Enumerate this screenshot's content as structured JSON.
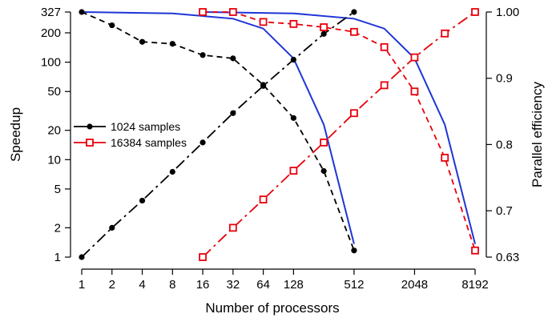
{
  "chart_data": {
    "type": "line",
    "title": "",
    "xlabel": "Number of processors",
    "ylabel_left": "Speedup",
    "ylabel_right": "Parallel efficiency",
    "x_scale": "log2",
    "y_left_scale": "log",
    "y_right_scale": "linear",
    "xlim": [
      1,
      8192
    ],
    "ylim_left": [
      1,
      327
    ],
    "ylim_right": [
      0.63,
      1.0
    ],
    "grid": false,
    "legend_position": "center-left",
    "x_ticks": [
      "1",
      "2",
      "4",
      "8",
      "16",
      "32",
      "64",
      "128",
      "512",
      "2048",
      "8192"
    ],
    "x_tick_values": [
      1,
      2,
      4,
      8,
      16,
      32,
      64,
      128,
      512,
      2048,
      8192
    ],
    "y_left_ticks": [
      "1",
      "2",
      "5",
      "10",
      "20",
      "50",
      "100",
      "200",
      "327"
    ],
    "y_left_tick_values": [
      1,
      2,
      5,
      10,
      20,
      50,
      100,
      200,
      327
    ],
    "y_right_ticks": [
      "0.63",
      "0.7",
      "0.8",
      "0.9",
      "1.00"
    ],
    "y_right_tick_values": [
      0.63,
      0.7,
      0.8,
      0.9,
      1.0
    ],
    "legend": [
      {
        "label": "1024 samples",
        "color": "#000000",
        "marker": "filled-circle"
      },
      {
        "label": "16384 samples",
        "color": "#e8000b",
        "marker": "open-square"
      }
    ],
    "series": [
      {
        "name": "1024 samples",
        "role": "speedup",
        "axis": "left",
        "color": "#000000",
        "x": [
          1,
          2,
          4,
          8,
          16,
          32,
          64,
          128,
          256,
          512
        ],
        "y": [
          1,
          2,
          3.8,
          7.5,
          15,
          30,
          57,
          106,
          195,
          327
        ]
      },
      {
        "name": "1024 samples",
        "role": "efficiency",
        "axis": "right",
        "color": "#000000",
        "x": [
          1,
          2,
          4,
          8,
          16,
          32,
          64,
          128,
          256,
          512
        ],
        "y": [
          1.0,
          0.98,
          0.955,
          0.952,
          0.935,
          0.93,
          0.89,
          0.84,
          0.76,
          0.64
        ]
      },
      {
        "name": "16384 samples",
        "role": "speedup",
        "axis": "left",
        "color": "#e8000b",
        "x": [
          16,
          32,
          64,
          128,
          256,
          512,
          1024,
          2048,
          4096,
          8192
        ],
        "y": [
          1,
          2,
          3.9,
          7.7,
          15,
          30,
          58,
          112,
          197,
          327
        ]
      },
      {
        "name": "16384 samples",
        "role": "efficiency",
        "axis": "right",
        "color": "#e8000b",
        "x": [
          16,
          32,
          64,
          128,
          256,
          512,
          1024,
          2048,
          4096,
          8192
        ],
        "y": [
          1.0,
          1.0,
          0.985,
          0.982,
          0.977,
          0.97,
          0.947,
          0.88,
          0.78,
          0.64
        ]
      }
    ],
    "fit_curves": [
      {
        "role": "efficiency fit",
        "axis": "right",
        "color": "#1f35d6",
        "x": [
          1,
          8,
          32,
          64,
          128,
          256,
          512
        ],
        "y": [
          1.0,
          0.998,
          0.99,
          0.975,
          0.93,
          0.83,
          0.65
        ]
      },
      {
        "role": "efficiency fit",
        "axis": "right",
        "color": "#1f35d6",
        "x": [
          16,
          128,
          512,
          1024,
          2048,
          4096,
          8192
        ],
        "y": [
          1.0,
          0.998,
          0.99,
          0.975,
          0.93,
          0.83,
          0.65
        ]
      }
    ]
  }
}
